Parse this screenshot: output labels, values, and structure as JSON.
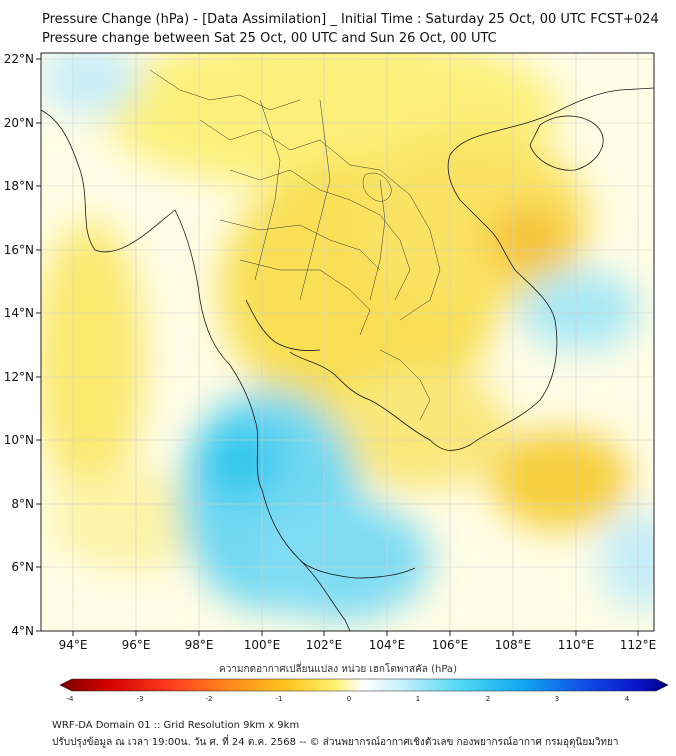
{
  "header": {
    "title_line1": "Pressure Change (hPa) - [Data Assimilation] _ Initial Time : Saturday 25 Oct, 00 UTC FCST+024",
    "title_line2": "Pressure change between Sat 25 Oct, 00 UTC and Sun 26 Oct, 00 UTC"
  },
  "map": {
    "lon_labels": [
      "94°E",
      "96°E",
      "98°E",
      "100°E",
      "102°E",
      "104°E",
      "106°E",
      "108°E",
      "110°E",
      "112°E"
    ],
    "lat_labels": [
      "22°N",
      "20°N",
      "18°N",
      "16°N",
      "14°N",
      "12°N",
      "10°N",
      "8°N",
      "6°N",
      "4°N"
    ],
    "lon_range": [
      93.0,
      112.5
    ],
    "lat_range": [
      4.0,
      22.2
    ],
    "field_description_colors": {
      "positive_high": "#22c8ee",
      "positive_low": "#b8ecf8",
      "near_zero": "#fffde0",
      "negative_low": "#fff3a0",
      "negative_mid": "#f7d84a",
      "negative_high": "#f1a81a"
    }
  },
  "colorbar": {
    "title": "ความกดอากาศเปลี่ยนแปลง หน่วย เฮกโตพาสคัล (hPa)",
    "ticks": [
      "-4",
      "-3",
      "-2",
      "-1",
      "0",
      "1",
      "2",
      "3",
      "4"
    ],
    "range": [
      -4,
      4
    ]
  },
  "footer": {
    "line1": "WRF-DA Domain 01 :: Grid Resolution 9km x 9km",
    "line2": "ปรับปรุงข้อมูล ณ เวลา 19:00น. วัน ศ. ที่ 24 ต.ค. 2568 -- © ส่วนพยากรณ์อากาศเชิงตัวเลข กองพยากรณ์อากาศ กรมอุตุนิยมวิทยา"
  }
}
